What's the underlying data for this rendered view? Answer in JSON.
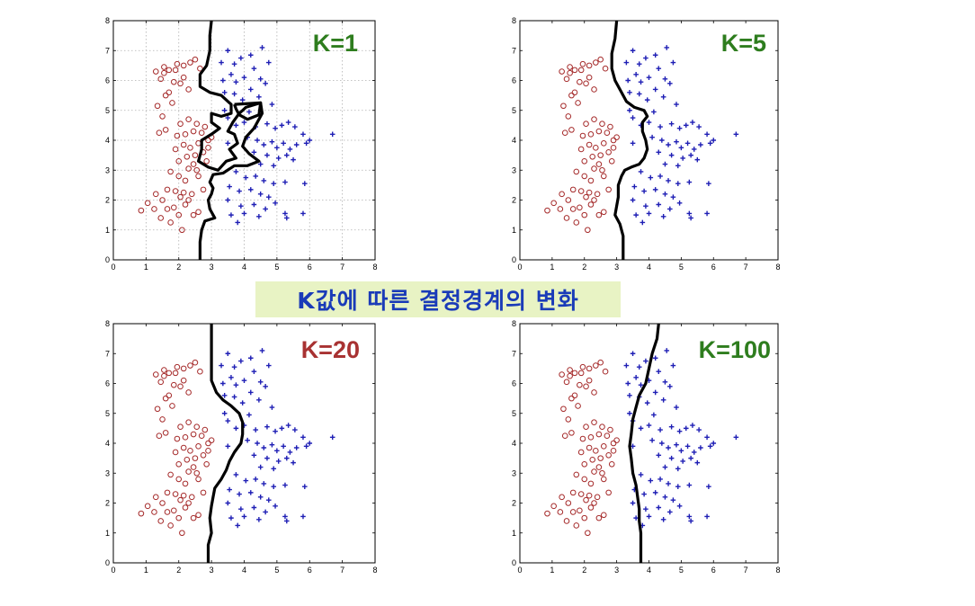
{
  "caption": "K값에 따른 결정경계의 변화",
  "colors": {
    "class_circle": "#a52a2a",
    "class_plus": "#1f1fb5",
    "boundary": "#000000",
    "k_green": "#2e7d1e",
    "k_red": "#a83232",
    "caption_bg": "#e8f3c4",
    "caption_text": "#1a3bb8"
  },
  "chart_data": [
    {
      "type": "scatter",
      "title": "K=1",
      "title_color": "#2e7d1e",
      "grid": true,
      "xlim": [
        0,
        8
      ],
      "ylim": [
        0,
        8
      ],
      "xticks": [
        "0",
        "1",
        "2",
        "3",
        "4",
        "5",
        "6",
        "7",
        "8"
      ],
      "yticks": [
        "0",
        "1",
        "2",
        "3",
        "4",
        "5",
        "6",
        "7",
        "8"
      ],
      "boundary": [
        [
          3.0,
          8.0
        ],
        [
          2.95,
          7.5
        ],
        [
          2.95,
          7.0
        ],
        [
          2.85,
          6.5
        ],
        [
          2.65,
          6.2
        ],
        [
          2.65,
          5.8
        ],
        [
          2.95,
          5.6
        ],
        [
          3.3,
          5.5
        ],
        [
          3.6,
          5.2
        ],
        [
          3.6,
          4.9
        ],
        [
          3.3,
          4.8
        ],
        [
          3.0,
          4.9
        ],
        [
          3.0,
          4.6
        ],
        [
          3.25,
          4.4
        ],
        [
          3.0,
          4.2
        ],
        [
          2.7,
          4.0
        ],
        [
          2.7,
          3.7
        ],
        [
          2.6,
          3.3
        ],
        [
          2.9,
          3.1
        ],
        [
          3.2,
          3.0
        ],
        [
          3.45,
          3.3
        ],
        [
          3.75,
          3.4
        ],
        [
          3.55,
          3.7
        ],
        [
          3.8,
          3.9
        ],
        [
          3.7,
          4.2
        ],
        [
          3.5,
          4.3
        ],
        [
          3.65,
          4.6
        ],
        [
          3.85,
          4.9
        ],
        [
          3.95,
          5.0
        ],
        [
          4.05,
          5.1
        ],
        [
          4.5,
          5.25
        ],
        [
          4.55,
          4.9
        ],
        [
          4.3,
          4.4
        ],
        [
          4.05,
          4.1
        ],
        [
          3.95,
          3.8
        ],
        [
          4.15,
          3.55
        ],
        [
          4.45,
          3.3
        ],
        [
          4.1,
          3.15
        ],
        [
          3.7,
          3.15
        ],
        [
          3.35,
          2.9
        ],
        [
          3.05,
          2.85
        ],
        [
          2.95,
          2.6
        ],
        [
          3.05,
          2.4
        ],
        [
          3.0,
          2.2
        ],
        [
          2.9,
          2.0
        ],
        [
          2.95,
          1.7
        ],
        [
          3.1,
          1.4
        ],
        [
          2.8,
          1.3
        ],
        [
          2.7,
          1.0
        ],
        [
          2.65,
          0.6
        ],
        [
          2.65,
          0.0
        ]
      ],
      "boundary_extra": [
        [
          3.7,
          5.2
        ],
        [
          4.5,
          5.25
        ],
        [
          4.45,
          4.85
        ],
        [
          4.1,
          4.7
        ],
        [
          3.85,
          4.85
        ],
        [
          3.75,
          5.05
        ],
        [
          3.7,
          5.2
        ]
      ]
    },
    {
      "type": "scatter",
      "title": "K=5",
      "title_color": "#2e7d1e",
      "grid": false,
      "xlim": [
        0,
        8
      ],
      "ylim": [
        0,
        8
      ],
      "xticks": [
        "0",
        "1",
        "2",
        "3",
        "4",
        "5",
        "6",
        "7",
        "8"
      ],
      "yticks": [
        "0",
        "1",
        "2",
        "3",
        "4",
        "5",
        "6",
        "7",
        "8"
      ],
      "boundary": [
        [
          3.0,
          8.0
        ],
        [
          2.95,
          7.4
        ],
        [
          2.85,
          6.9
        ],
        [
          2.85,
          6.4
        ],
        [
          2.95,
          6.0
        ],
        [
          3.15,
          5.6
        ],
        [
          3.3,
          5.3
        ],
        [
          3.55,
          5.1
        ],
        [
          3.85,
          5.0
        ],
        [
          3.95,
          4.8
        ],
        [
          3.8,
          4.6
        ],
        [
          3.8,
          4.3
        ],
        [
          3.9,
          4.0
        ],
        [
          3.95,
          3.7
        ],
        [
          3.85,
          3.4
        ],
        [
          3.7,
          3.2
        ],
        [
          3.45,
          3.1
        ],
        [
          3.25,
          3.0
        ],
        [
          3.15,
          2.8
        ],
        [
          3.05,
          2.5
        ],
        [
          3.05,
          2.1
        ],
        [
          3.0,
          1.8
        ],
        [
          2.95,
          1.5
        ],
        [
          3.1,
          1.2
        ],
        [
          3.2,
          0.8
        ],
        [
          3.2,
          0.0
        ]
      ]
    },
    {
      "type": "scatter",
      "title": "K=20",
      "title_color": "#a83232",
      "grid": false,
      "xlim": [
        0,
        8
      ],
      "ylim": [
        0,
        8
      ],
      "xticks": [
        "0",
        "1",
        "2",
        "3",
        "4",
        "5",
        "6",
        "7",
        "8"
      ],
      "yticks": [
        "0",
        "1",
        "2",
        "3",
        "4",
        "5",
        "6",
        "7",
        "8"
      ],
      "boundary": [
        [
          3.0,
          8.0
        ],
        [
          3.0,
          7.3
        ],
        [
          3.0,
          6.6
        ],
        [
          3.0,
          6.1
        ],
        [
          3.15,
          5.7
        ],
        [
          3.35,
          5.45
        ],
        [
          3.6,
          5.25
        ],
        [
          3.85,
          5.0
        ],
        [
          3.95,
          4.7
        ],
        [
          3.95,
          4.3
        ],
        [
          3.9,
          4.0
        ],
        [
          3.7,
          3.7
        ],
        [
          3.55,
          3.4
        ],
        [
          3.45,
          3.1
        ],
        [
          3.3,
          2.8
        ],
        [
          3.1,
          2.5
        ],
        [
          3.05,
          2.2
        ],
        [
          3.0,
          1.9
        ],
        [
          2.95,
          1.5
        ],
        [
          3.0,
          1.0
        ],
        [
          2.9,
          0.6
        ],
        [
          2.9,
          0.0
        ]
      ]
    },
    {
      "type": "scatter",
      "title": "K=100",
      "title_color": "#2e7d1e",
      "grid": false,
      "xlim": [
        0,
        8
      ],
      "ylim": [
        0,
        8
      ],
      "xticks": [
        "0",
        "1",
        "2",
        "3",
        "4",
        "5",
        "6",
        "7",
        "8"
      ],
      "yticks": [
        "0",
        "1",
        "2",
        "3",
        "4",
        "5",
        "6",
        "7",
        "8"
      ],
      "boundary": [
        [
          4.3,
          8.0
        ],
        [
          4.25,
          7.5
        ],
        [
          4.1,
          7.0
        ],
        [
          4.0,
          6.5
        ],
        [
          3.9,
          6.0
        ],
        [
          3.7,
          5.6
        ],
        [
          3.6,
          5.2
        ],
        [
          3.5,
          4.8
        ],
        [
          3.45,
          4.3
        ],
        [
          3.4,
          3.9
        ],
        [
          3.45,
          3.5
        ],
        [
          3.5,
          3.0
        ],
        [
          3.6,
          2.6
        ],
        [
          3.65,
          2.2
        ],
        [
          3.7,
          1.8
        ],
        [
          3.7,
          1.4
        ],
        [
          3.75,
          1.0
        ],
        [
          3.75,
          0.5
        ],
        [
          3.75,
          0.0
        ]
      ]
    }
  ],
  "points": {
    "circles": [
      [
        0.85,
        1.65
      ],
      [
        1.05,
        1.9
      ],
      [
        1.25,
        1.7
      ],
      [
        1.3,
        2.2
      ],
      [
        1.45,
        1.4
      ],
      [
        1.5,
        2.0
      ],
      [
        1.65,
        1.7
      ],
      [
        1.75,
        1.25
      ],
      [
        1.85,
        1.75
      ],
      [
        1.9,
        2.3
      ],
      [
        2.0,
        1.5
      ],
      [
        2.05,
        2.1
      ],
      [
        2.15,
        2.25
      ],
      [
        2.2,
        1.85
      ],
      [
        2.3,
        2.0
      ],
      [
        2.4,
        2.2
      ],
      [
        2.45,
        1.5
      ],
      [
        2.6,
        1.6
      ],
      [
        2.1,
        1.0
      ],
      [
        1.65,
        2.35
      ],
      [
        2.2,
        2.65
      ],
      [
        2.0,
        2.8
      ],
      [
        1.75,
        2.95
      ],
      [
        2.3,
        3.05
      ],
      [
        2.55,
        3.0
      ],
      [
        2.0,
        3.3
      ],
      [
        2.25,
        3.45
      ],
      [
        2.5,
        3.5
      ],
      [
        2.75,
        3.6
      ],
      [
        1.9,
        3.7
      ],
      [
        2.15,
        3.85
      ],
      [
        2.35,
        3.75
      ],
      [
        2.6,
        3.9
      ],
      [
        1.95,
        4.15
      ],
      [
        2.2,
        4.2
      ],
      [
        2.45,
        4.3
      ],
      [
        2.7,
        4.25
      ],
      [
        2.9,
        4.0
      ],
      [
        1.6,
        4.35
      ],
      [
        2.05,
        4.55
      ],
      [
        2.3,
        4.7
      ],
      [
        2.55,
        4.55
      ],
      [
        2.8,
        4.45
      ],
      [
        3.0,
        4.1
      ],
      [
        1.4,
        4.25
      ],
      [
        1.5,
        4.8
      ],
      [
        1.35,
        5.15
      ],
      [
        1.8,
        5.25
      ],
      [
        1.6,
        5.5
      ],
      [
        1.7,
        5.6
      ],
      [
        1.85,
        5.95
      ],
      [
        2.05,
        5.9
      ],
      [
        2.3,
        5.7
      ],
      [
        2.15,
        6.1
      ],
      [
        1.45,
        6.05
      ],
      [
        1.3,
        6.3
      ],
      [
        1.55,
        6.25
      ],
      [
        1.7,
        6.35
      ],
      [
        1.9,
        6.35
      ],
      [
        1.95,
        6.55
      ],
      [
        2.15,
        6.5
      ],
      [
        2.35,
        6.6
      ],
      [
        2.5,
        6.7
      ],
      [
        2.65,
        6.4
      ],
      [
        1.55,
        6.45
      ],
      [
        2.6,
        2.8
      ],
      [
        2.75,
        2.35
      ],
      [
        2.45,
        3.2
      ],
      [
        2.85,
        3.3
      ],
      [
        2.9,
        3.75
      ]
    ],
    "pluses": [
      [
        3.3,
        6.6
      ],
      [
        3.5,
        7.0
      ],
      [
        3.7,
        6.55
      ],
      [
        3.9,
        6.75
      ],
      [
        4.2,
        6.85
      ],
      [
        4.55,
        7.1
      ],
      [
        4.75,
        6.6
      ],
      [
        3.35,
        6.0
      ],
      [
        3.6,
        6.2
      ],
      [
        3.75,
        5.95
      ],
      [
        4.0,
        6.1
      ],
      [
        4.3,
        6.4
      ],
      [
        4.5,
        6.05
      ],
      [
        3.4,
        5.6
      ],
      [
        3.7,
        5.55
      ],
      [
        3.95,
        5.35
      ],
      [
        4.2,
        5.7
      ],
      [
        4.45,
        5.45
      ],
      [
        4.65,
        5.9
      ],
      [
        4.85,
        5.2
      ],
      [
        3.5,
        4.75
      ],
      [
        3.75,
        4.5
      ],
      [
        4.0,
        4.6
      ],
      [
        4.35,
        4.45
      ],
      [
        4.7,
        4.55
      ],
      [
        4.95,
        4.4
      ],
      [
        5.15,
        4.5
      ],
      [
        5.35,
        4.6
      ],
      [
        5.55,
        4.45
      ],
      [
        5.8,
        4.2
      ],
      [
        4.1,
        4.1
      ],
      [
        4.4,
        4.0
      ],
      [
        4.6,
        3.85
      ],
      [
        4.85,
        3.95
      ],
      [
        5.0,
        3.75
      ],
      [
        5.2,
        3.9
      ],
      [
        5.4,
        3.7
      ],
      [
        5.6,
        3.85
      ],
      [
        5.9,
        3.9
      ],
      [
        6.0,
        4.0
      ],
      [
        6.7,
        4.2
      ],
      [
        4.3,
        3.6
      ],
      [
        4.7,
        3.5
      ],
      [
        5.05,
        3.4
      ],
      [
        5.3,
        3.5
      ],
      [
        5.5,
        3.35
      ],
      [
        4.5,
        3.2
      ],
      [
        4.9,
        3.15
      ],
      [
        3.75,
        2.95
      ],
      [
        4.05,
        2.75
      ],
      [
        4.35,
        2.8
      ],
      [
        4.6,
        2.65
      ],
      [
        4.9,
        2.55
      ],
      [
        5.25,
        2.6
      ],
      [
        5.85,
        2.55
      ],
      [
        3.55,
        2.45
      ],
      [
        3.85,
        2.3
      ],
      [
        4.2,
        2.35
      ],
      [
        4.5,
        2.2
      ],
      [
        4.75,
        2.1
      ],
      [
        3.5,
        2.0
      ],
      [
        3.9,
        1.8
      ],
      [
        4.3,
        1.85
      ],
      [
        4.65,
        1.7
      ],
      [
        4.95,
        1.9
      ],
      [
        5.25,
        1.55
      ],
      [
        5.3,
        1.4
      ],
      [
        3.6,
        1.5
      ],
      [
        4.0,
        1.55
      ],
      [
        4.45,
        1.45
      ],
      [
        3.8,
        1.25
      ],
      [
        5.8,
        1.55
      ],
      [
        3.4,
        5.0
      ],
      [
        4.15,
        4.95
      ],
      [
        3.5,
        3.9
      ]
    ]
  }
}
